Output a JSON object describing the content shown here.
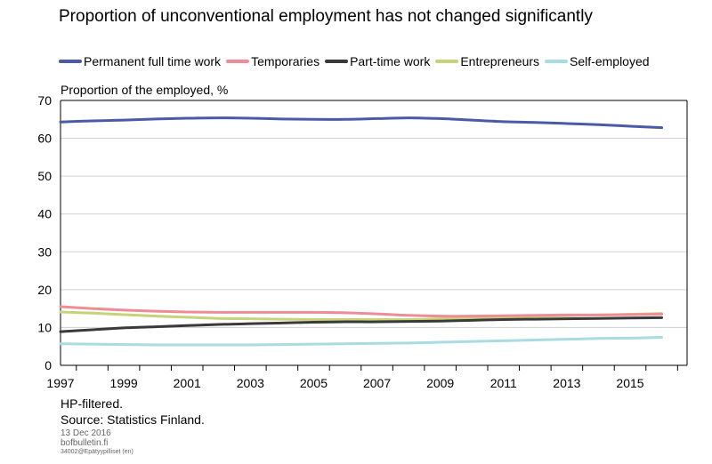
{
  "chart_data": {
    "type": "line",
    "title": "Proportion of unconventional employment has not changed significantly",
    "ylabel": "Proportion of the employed, %",
    "ylim": [
      0,
      70
    ],
    "yticks": [
      0,
      10,
      20,
      30,
      40,
      50,
      60,
      70
    ],
    "xlim": [
      1997,
      2016.8
    ],
    "xticks": [
      "1997",
      "1999",
      "2001",
      "2003",
      "2005",
      "2007",
      "2009",
      "2011",
      "2013",
      "2015"
    ],
    "grid": "horizontal",
    "legend_position": "top",
    "x": [
      1997,
      1998,
      1999,
      2000,
      2001,
      2002,
      2003,
      2004,
      2005,
      2006,
      2007,
      2008,
      2009,
      2010,
      2011,
      2012,
      2013,
      2014,
      2015,
      2016
    ],
    "series": [
      {
        "name": "Permanent full time work",
        "color": "#4a5aa8",
        "values": [
          64.3,
          64.6,
          64.8,
          65.1,
          65.3,
          65.4,
          65.3,
          65.1,
          65.0,
          65.0,
          65.2,
          65.4,
          65.2,
          64.8,
          64.4,
          64.2,
          63.9,
          63.6,
          63.2,
          62.8
        ]
      },
      {
        "name": "Temporaries",
        "color": "#f08c96",
        "values": [
          15.5,
          15.0,
          14.6,
          14.3,
          14.1,
          14.0,
          14.0,
          14.0,
          14.0,
          13.9,
          13.6,
          13.2,
          13.0,
          13.0,
          13.1,
          13.2,
          13.3,
          13.3,
          13.4,
          13.5
        ]
      },
      {
        "name": "Part-time work",
        "color": "#3a3a3a",
        "values": [
          8.9,
          9.4,
          9.9,
          10.2,
          10.5,
          10.8,
          11.0,
          11.2,
          11.4,
          11.5,
          11.5,
          11.6,
          11.7,
          11.9,
          12.1,
          12.2,
          12.3,
          12.4,
          12.5,
          12.6
        ]
      },
      {
        "name": "Entrepreneurs",
        "color": "#c8d27a",
        "values": [
          14.1,
          13.8,
          13.4,
          13.0,
          12.7,
          12.4,
          12.3,
          12.2,
          12.1,
          12.1,
          12.1,
          12.1,
          12.3,
          12.5,
          12.7,
          12.9,
          13.1,
          13.3,
          13.5,
          13.7
        ]
      },
      {
        "name": "Self-employed",
        "color": "#a8dce0",
        "values": [
          5.7,
          5.6,
          5.5,
          5.4,
          5.4,
          5.4,
          5.4,
          5.5,
          5.6,
          5.7,
          5.8,
          5.9,
          6.1,
          6.3,
          6.5,
          6.7,
          6.9,
          7.1,
          7.2,
          7.4
        ]
      }
    ]
  },
  "footer": {
    "note": "HP-filtered.",
    "source": "Source: Statistics Finland.",
    "date": "13 Dec 2016",
    "site": "bofbulletin.fi",
    "code": "34002@Epätyypilliset (en)"
  }
}
